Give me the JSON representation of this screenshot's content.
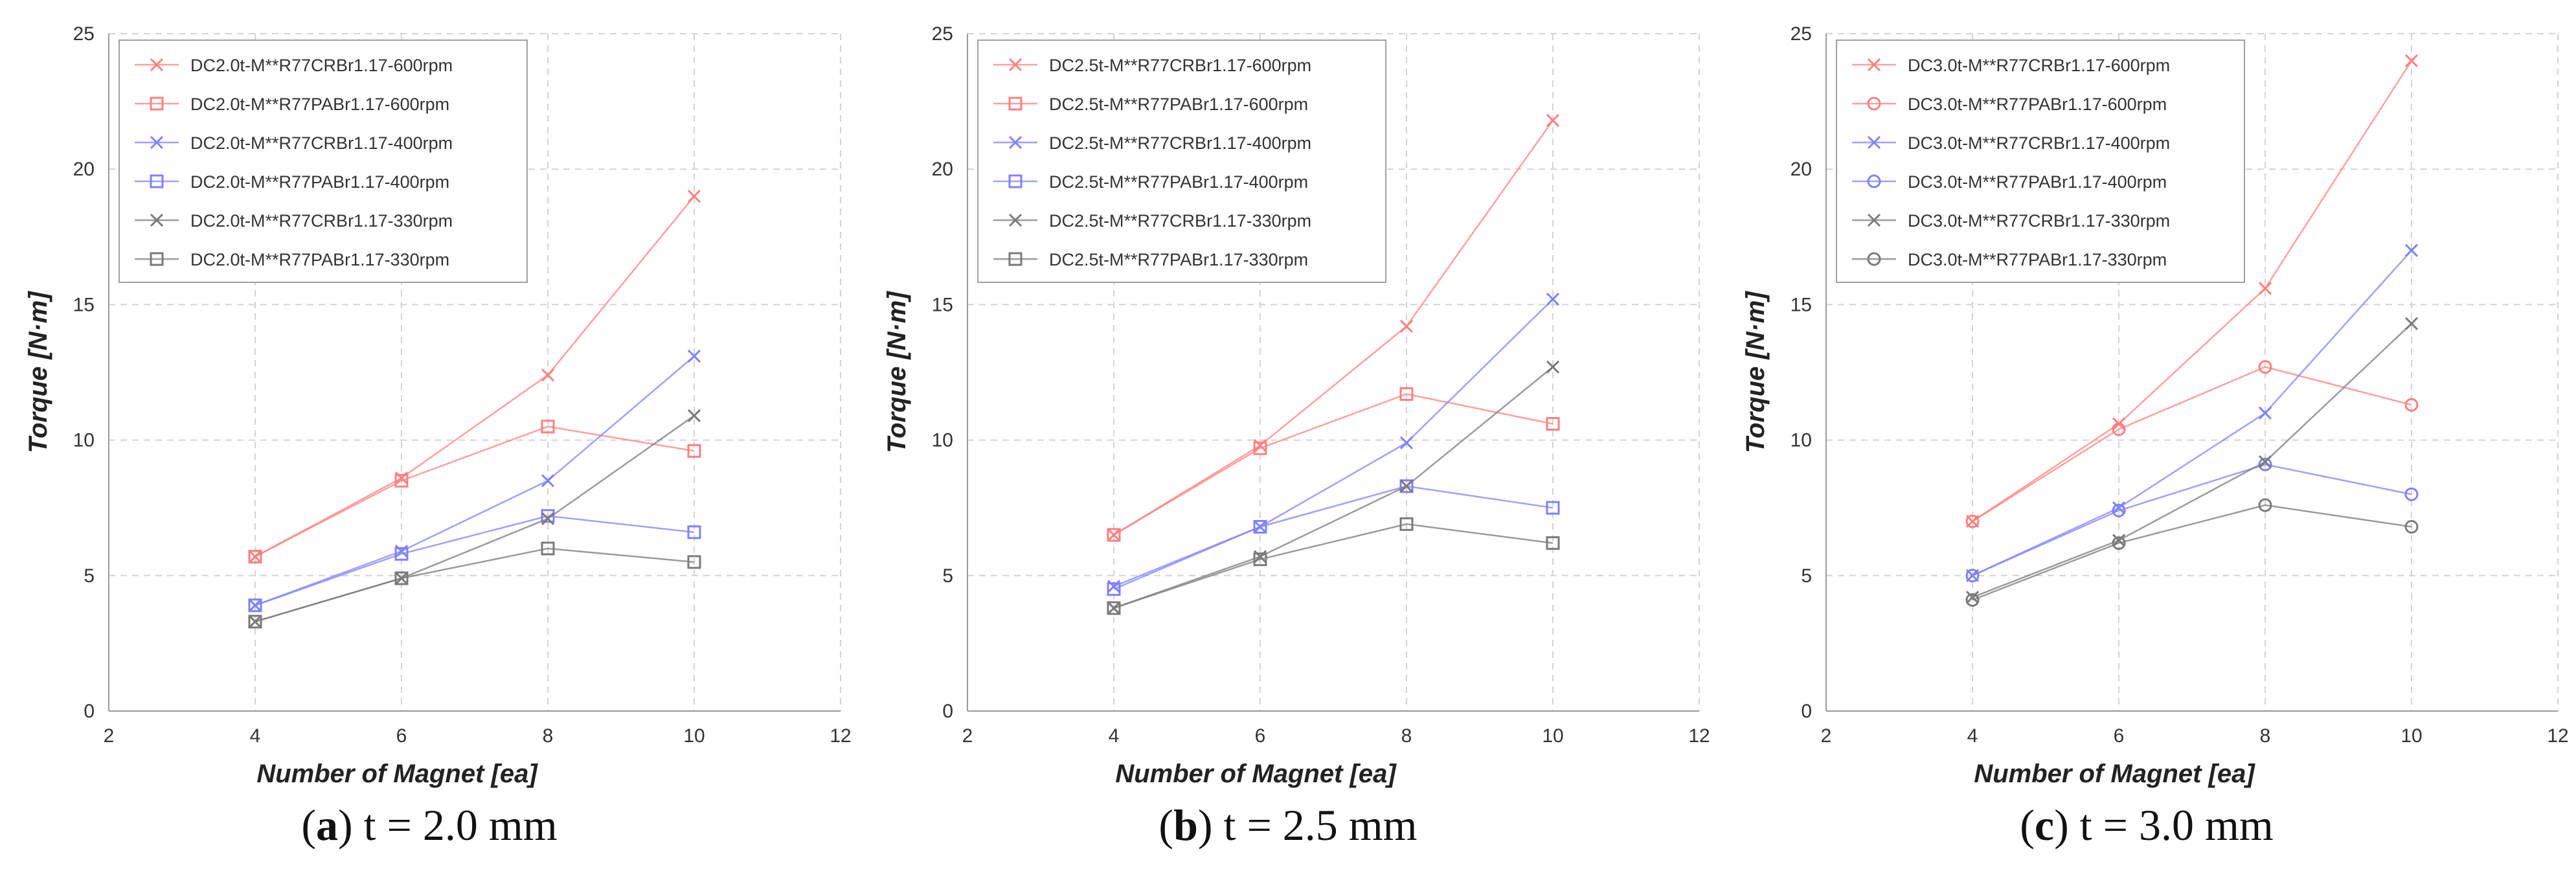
{
  "chart_data": [
    {
      "type": "line",
      "panel_letter": "a",
      "panel_caption": "t = 2.0 mm",
      "xlabel": "Number of Magnet [ea]",
      "ylabel": "Torque [N·m]",
      "xlim": [
        2,
        12
      ],
      "ylim": [
        0,
        25
      ],
      "xticks": [
        2,
        4,
        6,
        8,
        10,
        12
      ],
      "yticks": [
        0,
        5,
        10,
        15,
        20,
        25
      ],
      "legend_position": "top-left",
      "grid": true,
      "x": [
        4,
        6,
        8,
        10
      ],
      "series": [
        {
          "name": "DC2.0t-M**R77CRBr1.17-600rpm",
          "marker": "x",
          "color": "#ff8080",
          "values": [
            5.7,
            8.6,
            12.4,
            19.0
          ]
        },
        {
          "name": "DC2.0t-M**R77PABr1.17-600rpm",
          "marker": "square",
          "color": "#ff8080",
          "values": [
            5.7,
            8.5,
            10.5,
            9.6
          ]
        },
        {
          "name": "DC2.0t-M**R77CRBr1.17-400rpm",
          "marker": "x",
          "color": "#8080ff",
          "values": [
            3.9,
            5.9,
            8.5,
            13.1
          ]
        },
        {
          "name": "DC2.0t-M**R77PABr1.17-400rpm",
          "marker": "square",
          "color": "#8080ff",
          "values": [
            3.9,
            5.8,
            7.2,
            6.6
          ]
        },
        {
          "name": "DC2.0t-M**R77CRBr1.17-330rpm",
          "marker": "x",
          "color": "#7a7a7a",
          "values": [
            3.3,
            4.9,
            7.1,
            10.9
          ]
        },
        {
          "name": "DC2.0t-M**R77PABr1.17-330rpm",
          "marker": "square",
          "color": "#7a7a7a",
          "values": [
            3.3,
            4.9,
            6.0,
            5.5
          ]
        }
      ]
    },
    {
      "type": "line",
      "panel_letter": "b",
      "panel_caption": "t = 2.5 mm",
      "xlabel": "Number of Magnet [ea]",
      "ylabel": "Torque [N·m]",
      "xlim": [
        2,
        12
      ],
      "ylim": [
        0,
        25
      ],
      "xticks": [
        2,
        4,
        6,
        8,
        10,
        12
      ],
      "yticks": [
        0,
        5,
        10,
        15,
        20,
        25
      ],
      "legend_position": "top-left",
      "grid": true,
      "x": [
        4,
        6,
        8,
        10
      ],
      "series": [
        {
          "name": "DC2.5t-M**R77CRBr1.17-600rpm",
          "marker": "x",
          "color": "#ff8080",
          "values": [
            6.5,
            9.8,
            14.2,
            21.8
          ]
        },
        {
          "name": "DC2.5t-M**R77PABr1.17-600rpm",
          "marker": "square",
          "color": "#ff8080",
          "values": [
            6.5,
            9.7,
            11.7,
            10.6
          ]
        },
        {
          "name": "DC2.5t-M**R77CRBr1.17-400rpm",
          "marker": "x",
          "color": "#8080ff",
          "values": [
            4.6,
            6.8,
            9.9,
            15.2
          ]
        },
        {
          "name": "DC2.5t-M**R77PABr1.17-400rpm",
          "marker": "square",
          "color": "#8080ff",
          "values": [
            4.5,
            6.8,
            8.3,
            7.5
          ]
        },
        {
          "name": "DC2.5t-M**R77CRBr1.17-330rpm",
          "marker": "x",
          "color": "#7a7a7a",
          "values": [
            3.8,
            5.7,
            8.3,
            12.7
          ]
        },
        {
          "name": "DC2.5t-M**R77PABr1.17-330rpm",
          "marker": "square",
          "color": "#7a7a7a",
          "values": [
            3.8,
            5.6,
            6.9,
            6.2
          ]
        }
      ]
    },
    {
      "type": "line",
      "panel_letter": "c",
      "panel_caption": "t = 3.0 mm",
      "xlabel": "Number of Magnet [ea]",
      "ylabel": "Torque [N·m]",
      "xlim": [
        2,
        12
      ],
      "ylim": [
        0,
        25
      ],
      "xticks": [
        2,
        4,
        6,
        8,
        10,
        12
      ],
      "yticks": [
        0,
        5,
        10,
        15,
        20,
        25
      ],
      "legend_position": "top-left",
      "grid": true,
      "x": [
        4,
        6,
        8,
        10
      ],
      "series": [
        {
          "name": "DC3.0t-M**R77CRBr1.17-600rpm",
          "marker": "x",
          "color": "#ff8080",
          "values": [
            7.0,
            10.6,
            15.6,
            24.0
          ]
        },
        {
          "name": "DC3.0t-M**R77PABr1.17-600rpm",
          "marker": "circle",
          "color": "#ff8080",
          "values": [
            7.0,
            10.4,
            12.7,
            11.3
          ]
        },
        {
          "name": "DC3.0t-M**R77CRBr1.17-400rpm",
          "marker": "x",
          "color": "#8080ff",
          "values": [
            5.0,
            7.5,
            11.0,
            17.0
          ]
        },
        {
          "name": "DC3.0t-M**R77PABr1.17-400rpm",
          "marker": "circle",
          "color": "#8080ff",
          "values": [
            5.0,
            7.4,
            9.1,
            8.0
          ]
        },
        {
          "name": "DC3.0t-M**R77CRBr1.17-330rpm",
          "marker": "x",
          "color": "#7a7a7a",
          "values": [
            4.2,
            6.3,
            9.2,
            14.3
          ]
        },
        {
          "name": "DC3.0t-M**R77PABr1.17-330rpm",
          "marker": "circle",
          "color": "#7a7a7a",
          "values": [
            4.1,
            6.2,
            7.6,
            6.8
          ]
        }
      ]
    }
  ]
}
